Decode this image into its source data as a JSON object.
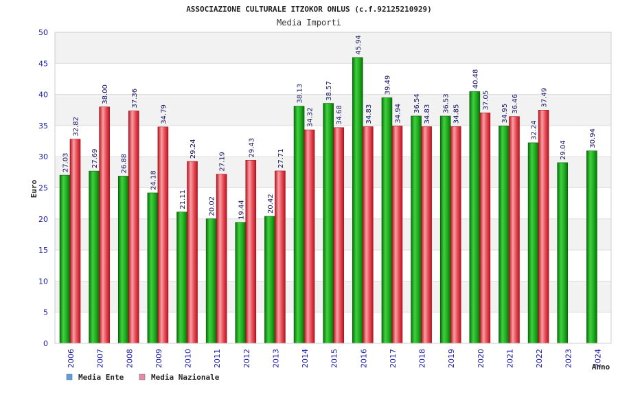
{
  "chart_data": {
    "type": "bar",
    "title": "ASSOCIAZIONE CULTURALE ITZOKOR ONLUS (c.f.92125210929)",
    "subtitle": "Media Importi",
    "xlabel": "Anno",
    "ylabel": "Euro",
    "ylim": [
      0,
      50
    ],
    "yticks": [
      "0",
      "5",
      "10",
      "15",
      "20",
      "25",
      "30",
      "35",
      "40",
      "45",
      "50"
    ],
    "categories": [
      "2006",
      "2007",
      "2008",
      "2009",
      "2010",
      "2011",
      "2012",
      "2013",
      "2014",
      "2015",
      "2016",
      "2017",
      "2018",
      "2019",
      "2020",
      "2021",
      "2022",
      "2023",
      "2024"
    ],
    "series": [
      {
        "name": "Media Ente",
        "color": "#1fa71f",
        "values": [
          27.03,
          27.69,
          26.88,
          24.18,
          21.11,
          20.02,
          19.44,
          20.42,
          38.13,
          38.57,
          45.94,
          39.49,
          36.54,
          36.53,
          40.48,
          34.95,
          32.24,
          29.04,
          30.94
        ],
        "labels": [
          "27.03",
          "27.69",
          "26.88",
          "24.18",
          "21.11",
          "20.02",
          "19.44",
          "20.42",
          "38.13",
          "38.57",
          "45.94",
          "39.49",
          "36.54",
          "36.53",
          "40.48",
          "34.95",
          "32.24",
          "29.04",
          "30.94"
        ]
      },
      {
        "name": "Media Nazionale",
        "color": "#e0303a",
        "values": [
          32.82,
          38.0,
          37.36,
          34.79,
          29.24,
          27.19,
          29.43,
          27.71,
          34.32,
          34.68,
          34.83,
          34.94,
          34.83,
          34.85,
          37.05,
          36.46,
          37.49,
          null,
          null
        ],
        "labels": [
          "32.82",
          "38.00",
          "37.36",
          "34.79",
          "29.24",
          "27.19",
          "29.43",
          "27.71",
          "34.32",
          "34.68",
          "34.83",
          "34.94",
          "34.83",
          "34.85",
          "37.05",
          "36.46",
          "37.49",
          null,
          null
        ]
      }
    ],
    "legend": [
      {
        "name": "Media Ente",
        "color": "#5aa0e8"
      },
      {
        "name": "Media Nazionale",
        "color": "#e88aa8"
      }
    ],
    "grid": true,
    "legend_position": "bottom-left"
  }
}
